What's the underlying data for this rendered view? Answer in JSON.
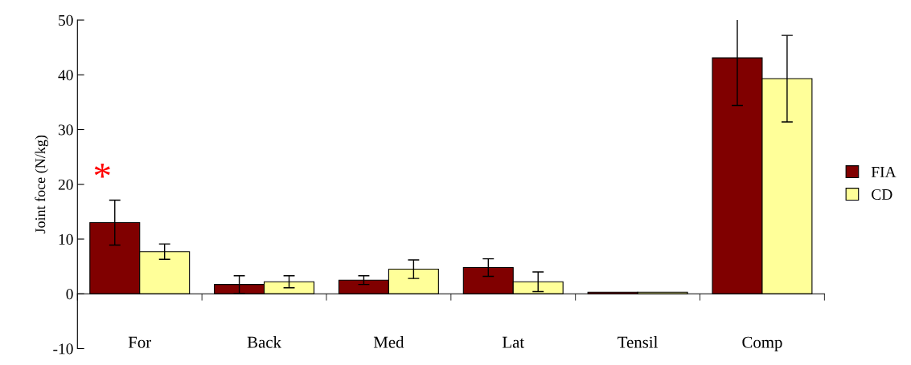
{
  "chart_data": {
    "type": "bar",
    "ylabel": "Joint foce (N/kg)",
    "categories": [
      "For",
      "Back",
      "Med",
      "Lat",
      "Tensil",
      "Comp"
    ],
    "series": [
      {
        "name": "FIA",
        "color": "#800000",
        "values": [
          13.0,
          1.7,
          2.5,
          4.8,
          0.3,
          43.1
        ],
        "errors": [
          4.1,
          1.6,
          0.8,
          1.6,
          null,
          8.7
        ]
      },
      {
        "name": "CD",
        "color": "#ffff99",
        "values": [
          7.7,
          2.2,
          4.5,
          2.2,
          0.3,
          39.3
        ],
        "errors": [
          1.4,
          1.1,
          1.7,
          1.8,
          null,
          7.9
        ]
      }
    ],
    "ylim": [
      -10,
      50
    ],
    "yticks": [
      -10,
      0,
      10,
      20,
      30,
      40,
      50
    ],
    "grid": false,
    "legend": "right",
    "annotations": [
      "*"
    ]
  }
}
